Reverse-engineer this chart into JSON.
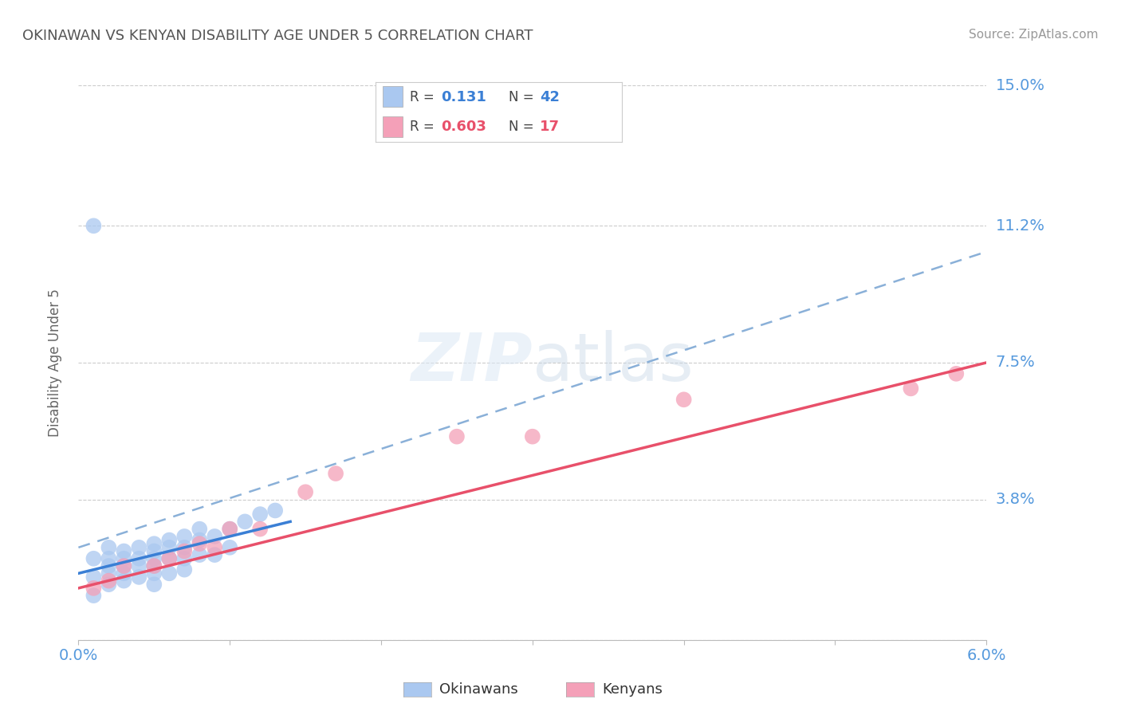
{
  "title": "OKINAWAN VS KENYAN DISABILITY AGE UNDER 5 CORRELATION CHART",
  "source": "Source: ZipAtlas.com",
  "ylabel": "Disability Age Under 5",
  "xmin": 0.0,
  "xmax": 0.06,
  "ymin": 0.0,
  "ymax": 0.15,
  "yticks": [
    0.0,
    0.038,
    0.075,
    0.112,
    0.15
  ],
  "ytick_labels": [
    "",
    "3.8%",
    "7.5%",
    "11.2%",
    "15.0%"
  ],
  "xtick_labels": [
    "0.0%",
    "",
    "",
    "",
    "",
    "",
    "6.0%"
  ],
  "okinawan_color": "#aac8f0",
  "kenyan_color": "#f4a0b8",
  "okinawan_line_color": "#3a7fd5",
  "kenyan_line_color": "#e8506a",
  "dashed_line_color": "#8ab0d8",
  "grid_color": "#cccccc",
  "background_color": "#ffffff",
  "title_color": "#555555",
  "axis_label_color": "#5599dd",
  "legend_R_okinawan": "0.131",
  "legend_N_okinawan": "42",
  "legend_R_kenyan": "0.603",
  "legend_N_kenyan": "17",
  "okinawan_x": [
    0.001,
    0.001,
    0.001,
    0.002,
    0.002,
    0.002,
    0.002,
    0.002,
    0.003,
    0.003,
    0.003,
    0.003,
    0.003,
    0.004,
    0.004,
    0.004,
    0.004,
    0.005,
    0.005,
    0.005,
    0.005,
    0.005,
    0.005,
    0.006,
    0.006,
    0.006,
    0.006,
    0.007,
    0.007,
    0.007,
    0.007,
    0.008,
    0.008,
    0.008,
    0.009,
    0.009,
    0.01,
    0.01,
    0.011,
    0.012,
    0.013,
    0.001
  ],
  "okinawan_y": [
    0.112,
    0.022,
    0.017,
    0.025,
    0.022,
    0.02,
    0.018,
    0.015,
    0.024,
    0.022,
    0.02,
    0.018,
    0.016,
    0.025,
    0.022,
    0.02,
    0.017,
    0.026,
    0.024,
    0.022,
    0.02,
    0.018,
    0.015,
    0.027,
    0.025,
    0.022,
    0.018,
    0.028,
    0.025,
    0.022,
    0.019,
    0.03,
    0.027,
    0.023,
    0.028,
    0.023,
    0.03,
    0.025,
    0.032,
    0.034,
    0.035,
    0.012
  ],
  "kenyan_x": [
    0.001,
    0.002,
    0.003,
    0.005,
    0.006,
    0.007,
    0.008,
    0.009,
    0.01,
    0.012,
    0.015,
    0.017,
    0.025,
    0.03,
    0.04,
    0.055,
    0.058
  ],
  "kenyan_y": [
    0.014,
    0.016,
    0.02,
    0.02,
    0.022,
    0.024,
    0.026,
    0.025,
    0.03,
    0.03,
    0.04,
    0.045,
    0.055,
    0.055,
    0.065,
    0.068,
    0.072
  ],
  "okin_line_x0": 0.0,
  "okin_line_y0": 0.018,
  "okin_line_x1": 0.014,
  "okin_line_y1": 0.032,
  "ken_line_x0": 0.0,
  "ken_line_y0": 0.014,
  "ken_line_x1": 0.06,
  "ken_line_y1": 0.075,
  "dash_line_x0": 0.0,
  "dash_line_y0": 0.025,
  "dash_line_x1": 0.06,
  "dash_line_y1": 0.105
}
